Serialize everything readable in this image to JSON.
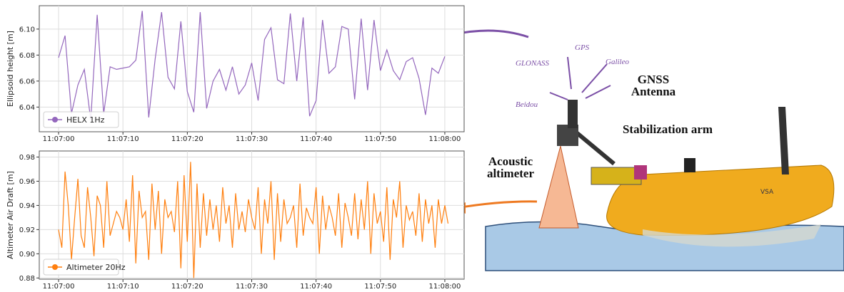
{
  "chart_data": [
    {
      "type": "line",
      "y_label": "Ellipsoid height [m]",
      "legend": "lower left",
      "grid": true,
      "xlim": [
        40017,
        40083
      ],
      "ylim": [
        6.021,
        6.118
      ],
      "xticks": [
        {
          "value": 40020,
          "label": "11:07:00"
        },
        {
          "value": 40030,
          "label": "11:07:10"
        },
        {
          "value": 40040,
          "label": "11:07:20"
        },
        {
          "value": 40050,
          "label": "11:07:30"
        },
        {
          "value": 40060,
          "label": "11:07:40"
        },
        {
          "value": 40070,
          "label": "11:07:50"
        },
        {
          "value": 40080,
          "label": "11:08:00"
        }
      ],
      "yticks": [
        6.04,
        6.06,
        6.08,
        {
          "value": 6.1,
          "label": "6.10"
        }
      ],
      "x": [
        40020,
        40021,
        40022,
        40023,
        40024,
        40025,
        40026,
        40027,
        40028,
        40029,
        40030,
        40031,
        40032,
        40033,
        40034,
        40035,
        40036,
        40037,
        40038,
        40039,
        40040,
        40041,
        40042,
        40043,
        40044,
        40045,
        40046,
        40047,
        40048,
        40049,
        40050,
        40051,
        40052,
        40053,
        40054,
        40055,
        40056,
        40057,
        40058,
        40059,
        40060,
        40061,
        40062,
        40063,
        40064,
        40065,
        40066,
        40067,
        40068,
        40069,
        40070,
        40071,
        40072,
        40073,
        40074,
        40075,
        40076,
        40077,
        40078,
        40079,
        40080
      ],
      "series": [
        {
          "name": "HELX 1Hz",
          "color": "#9467bd",
          "values": [
            6.078,
            6.095,
            6.035,
            6.057,
            6.069,
            6.03,
            6.111,
            6.035,
            6.071,
            6.069,
            6.07,
            6.071,
            6.076,
            6.114,
            6.032,
            6.077,
            6.113,
            6.063,
            6.054,
            6.106,
            6.052,
            6.036,
            6.113,
            6.039,
            6.06,
            6.069,
            6.053,
            6.071,
            6.05,
            6.057,
            6.074,
            6.045,
            6.092,
            6.101,
            6.061,
            6.058,
            6.112,
            6.06,
            6.109,
            6.033,
            6.045,
            6.107,
            6.066,
            6.071,
            6.102,
            6.1,
            6.046,
            6.108,
            6.053,
            6.107,
            6.068,
            6.084,
            6.068,
            6.061,
            6.075,
            6.078,
            6.062,
            6.034,
            6.07,
            6.066,
            6.079
          ]
        }
      ]
    },
    {
      "type": "line",
      "y_label": "Altimeter Air Draft [m]",
      "legend": "lower left",
      "grid": true,
      "xlim": [
        40017,
        40083
      ],
      "ylim": [
        0.879,
        0.985
      ],
      "xticks": [
        {
          "value": 40020,
          "label": "11:07:00"
        },
        {
          "value": 40030,
          "label": "11:07:10"
        },
        {
          "value": 40040,
          "label": "11:07:20"
        },
        {
          "value": 40050,
          "label": "11:07:30"
        },
        {
          "value": 40060,
          "label": "11:07:40"
        },
        {
          "value": 40070,
          "label": "11:07:50"
        },
        {
          "value": 40080,
          "label": "11:08:00"
        }
      ],
      "yticks": [
        0.88,
        {
          "value": 0.9,
          "label": "0.90"
        },
        0.92,
        0.94,
        0.96,
        0.98
      ],
      "x": [
        40020,
        40020.5,
        40021,
        40021.5,
        40022,
        40022.5,
        40023,
        40023.5,
        40024,
        40024.5,
        40025,
        40025.5,
        40026,
        40026.5,
        40027,
        40027.5,
        40028,
        40028.5,
        40029,
        40029.5,
        40030,
        40030.5,
        40031,
        40031.5,
        40032,
        40032.5,
        40033,
        40033.5,
        40034,
        40034.5,
        40035,
        40035.5,
        40036,
        40036.5,
        40037,
        40037.5,
        40038,
        40038.5,
        40039,
        40039.5,
        40040,
        40040.5,
        40041,
        40041.5,
        40042,
        40042.5,
        40043,
        40043.5,
        40044,
        40044.5,
        40045,
        40045.5,
        40046,
        40046.5,
        40047,
        40047.5,
        40048,
        40048.5,
        40049,
        40049.5,
        40050,
        40050.5,
        40051,
        40051.5,
        40052,
        40052.5,
        40053,
        40053.5,
        40054,
        40054.5,
        40055,
        40055.5,
        40056,
        40056.5,
        40057,
        40057.5,
        40058,
        40058.5,
        40059,
        40059.5,
        40060,
        40060.5,
        40061,
        40061.5,
        40062,
        40062.5,
        40063,
        40063.5,
        40064,
        40064.5,
        40065,
        40065.5,
        40066,
        40066.5,
        40067,
        40067.5,
        40068,
        40068.5,
        40069,
        40069.5,
        40070,
        40070.5,
        40071,
        40071.5,
        40072,
        40072.5,
        40073,
        40073.5,
        40074,
        40074.5,
        40075,
        40075.5,
        40076,
        40076.5,
        40077,
        40077.5,
        40078,
        40078.5,
        40079,
        40079.5,
        40080,
        40080.5
      ],
      "series": [
        {
          "name": "Altimeter 20Hz",
          "color": "#ff7f0e",
          "values": [
            0.92,
            0.905,
            0.968,
            0.94,
            0.895,
            0.93,
            0.962,
            0.915,
            0.905,
            0.955,
            0.93,
            0.898,
            0.948,
            0.94,
            0.905,
            0.96,
            0.915,
            0.925,
            0.935,
            0.93,
            0.92,
            0.945,
            0.91,
            0.965,
            0.892,
            0.952,
            0.93,
            0.935,
            0.895,
            0.958,
            0.92,
            0.952,
            0.9,
            0.945,
            0.93,
            0.935,
            0.918,
            0.96,
            0.888,
            0.965,
            0.91,
            0.976,
            0.88,
            0.958,
            0.905,
            0.95,
            0.915,
            0.945,
            0.92,
            0.94,
            0.91,
            0.955,
            0.925,
            0.94,
            0.905,
            0.95,
            0.92,
            0.935,
            0.918,
            0.945,
            0.93,
            0.92,
            0.955,
            0.9,
            0.945,
            0.925,
            0.96,
            0.895,
            0.95,
            0.91,
            0.945,
            0.925,
            0.93,
            0.94,
            0.905,
            0.958,
            0.915,
            0.938,
            0.93,
            0.925,
            0.955,
            0.9,
            0.948,
            0.92,
            0.94,
            0.93,
            0.915,
            0.95,
            0.905,
            0.942,
            0.93,
            0.915,
            0.95,
            0.912,
            0.945,
            0.92,
            0.96,
            0.9,
            0.95,
            0.925,
            0.935,
            0.91,
            0.955,
            0.895,
            0.945,
            0.93,
            0.96,
            0.905,
            0.94,
            0.928,
            0.935,
            0.915,
            0.95,
            0.91,
            0.945,
            0.925,
            0.94,
            0.905,
            0.945,
            0.925,
            0.94,
            0.925
          ]
        }
      ]
    }
  ],
  "diagram": {
    "labels": {
      "gps": "GPS",
      "glonass": "GLONASS",
      "galileo": "Galileo",
      "beidou": "Beidou",
      "gnss_antenna": "GNSS Antenna",
      "stabilization_arm": "Stabilization arm",
      "acoustic_altimeter": "Acoustic altimeter",
      "hull": "VSA"
    }
  }
}
